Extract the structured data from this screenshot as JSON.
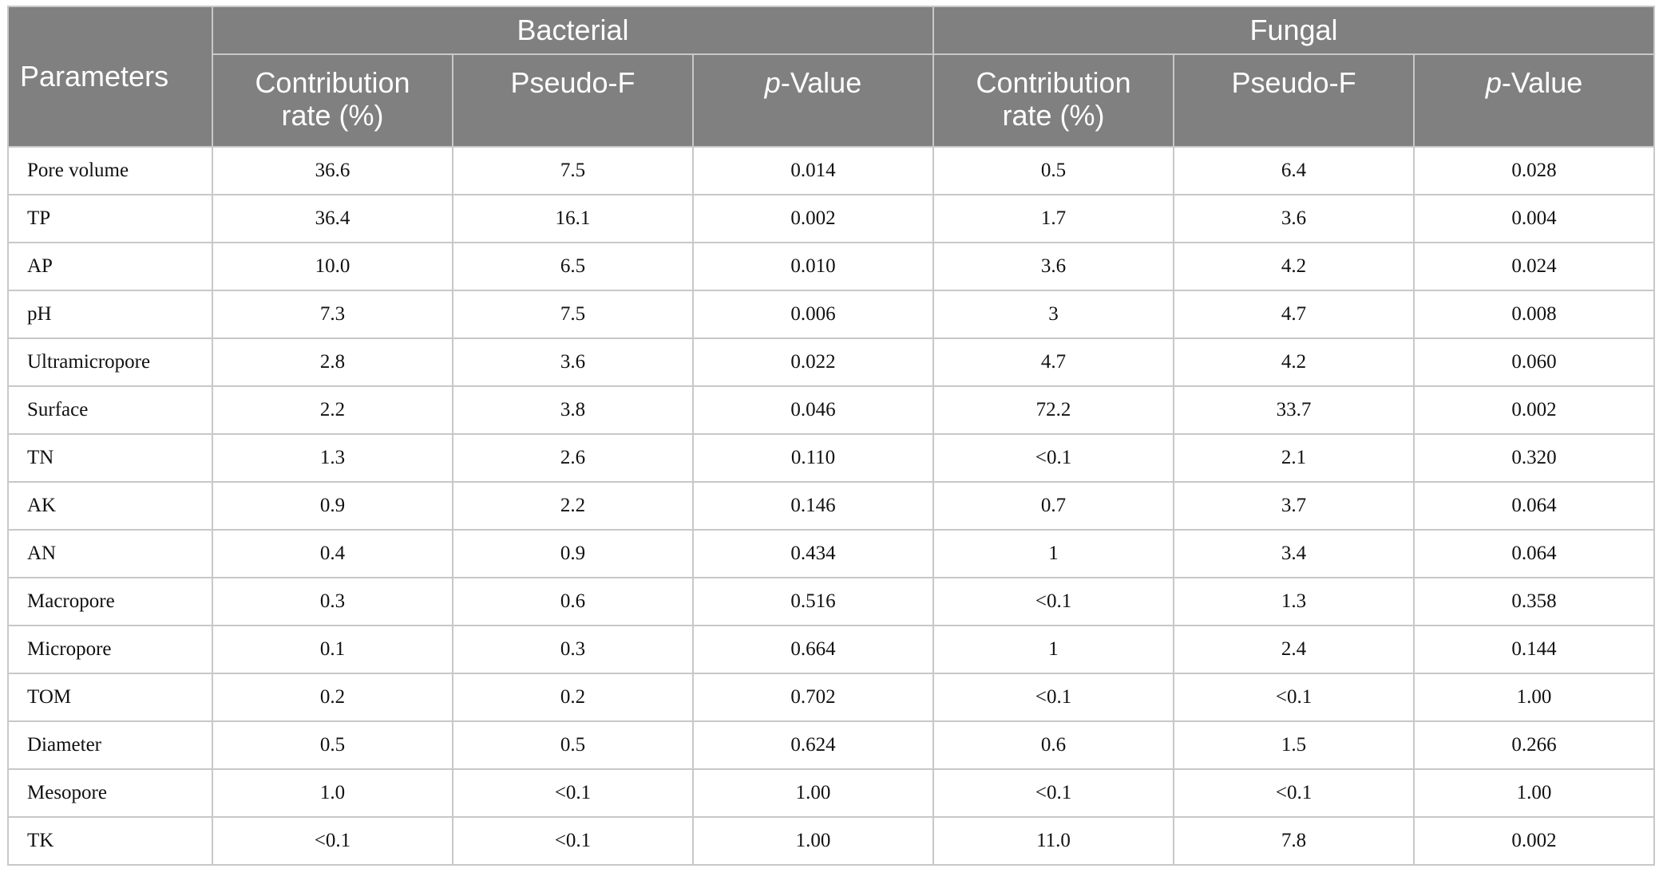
{
  "table": {
    "header_top": {
      "parameters": "Parameters",
      "bacterial": "Bacterial",
      "fungal": "Fungal"
    },
    "subheaders": {
      "bacterial": {
        "contribution_line1": "Contribution",
        "contribution_line2": "rate (%)",
        "pseudo_f": "Pseudo-F",
        "p_italic": "p",
        "p_suffix": "-Value"
      },
      "fungal": {
        "contribution_line1": "Contribution",
        "contribution_line2": "rate (%)",
        "pseudo_f": "Pseudo-F",
        "p_italic": "p",
        "p_suffix": "-Value"
      }
    },
    "rows": [
      [
        "Pore volume",
        "36.6",
        "7.5",
        "0.014",
        "0.5",
        "6.4",
        "0.028"
      ],
      [
        "TP",
        "36.4",
        "16.1",
        "0.002",
        "1.7",
        "3.6",
        "0.004"
      ],
      [
        "AP",
        "10.0",
        "6.5",
        "0.010",
        "3.6",
        "4.2",
        "0.024"
      ],
      [
        "pH",
        "7.3",
        "7.5",
        "0.006",
        "3",
        "4.7",
        "0.008"
      ],
      [
        "Ultramicropore",
        "2.8",
        "3.6",
        "0.022",
        "4.7",
        "4.2",
        "0.060"
      ],
      [
        "Surface",
        "2.2",
        "3.8",
        "0.046",
        "72.2",
        "33.7",
        "0.002"
      ],
      [
        "TN",
        "1.3",
        "2.6",
        "0.110",
        "<0.1",
        "2.1",
        "0.320"
      ],
      [
        "AK",
        "0.9",
        "2.2",
        "0.146",
        "0.7",
        "3.7",
        "0.064"
      ],
      [
        "AN",
        "0.4",
        "0.9",
        "0.434",
        "1",
        "3.4",
        "0.064"
      ],
      [
        "Macropore",
        "0.3",
        "0.6",
        "0.516",
        "<0.1",
        "1.3",
        "0.358"
      ],
      [
        "Micropore",
        "0.1",
        "0.3",
        "0.664",
        "1",
        "2.4",
        "0.144"
      ],
      [
        "TOM",
        "0.2",
        "0.2",
        "0.702",
        "<0.1",
        "<0.1",
        "1.00"
      ],
      [
        "Diameter",
        "0.5",
        "0.5",
        "0.624",
        "0.6",
        "1.5",
        "0.266"
      ],
      [
        "Mesopore",
        "1.0",
        "<0.1",
        "1.00",
        "<0.1",
        "<0.1",
        "1.00"
      ],
      [
        "TK",
        "<0.1",
        "<0.1",
        "1.00",
        "11.0",
        "7.8",
        "0.002"
      ]
    ],
    "colors": {
      "header_background": "#808080",
      "header_text": "#ffffff",
      "grid_line": "#c8c8c8",
      "body_text": "#111111"
    }
  }
}
